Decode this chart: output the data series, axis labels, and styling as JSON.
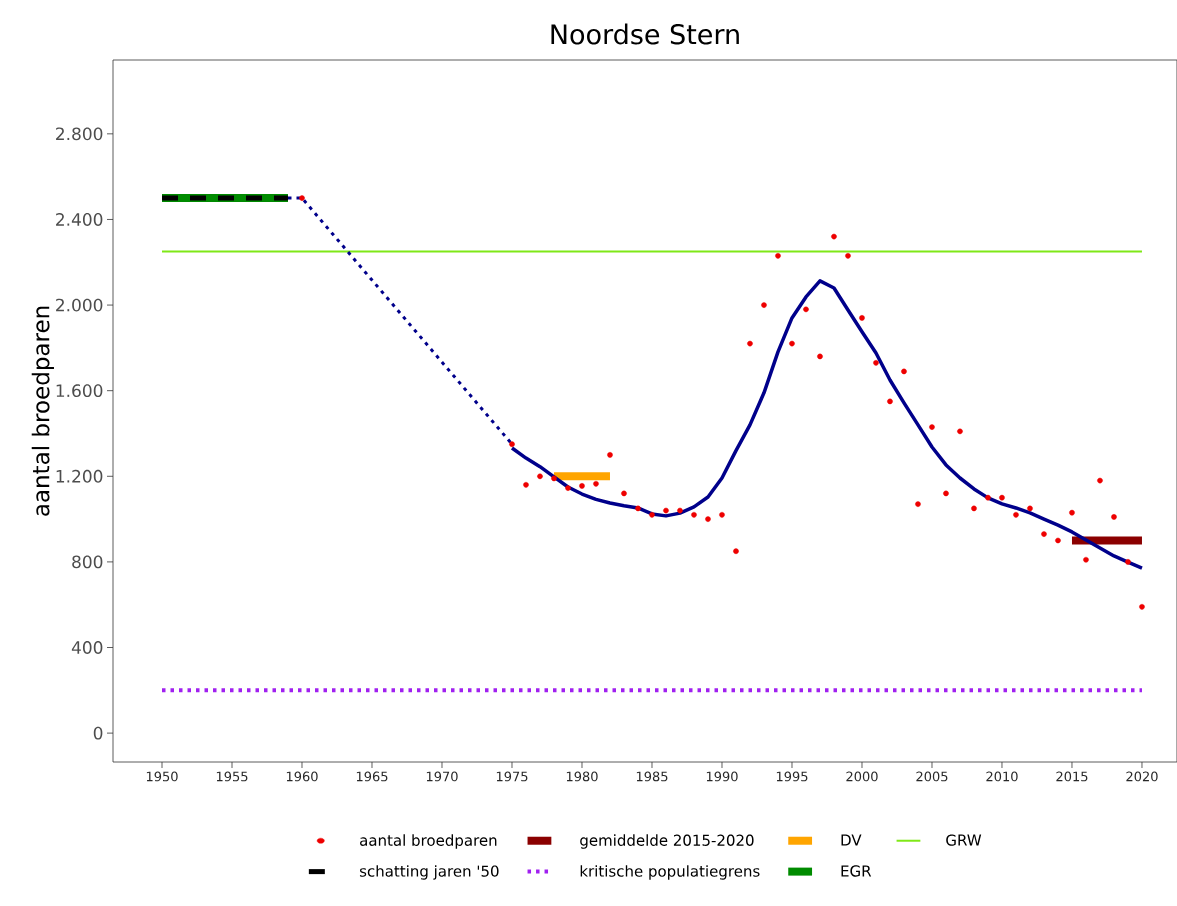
{
  "chart_data": {
    "type": "scatter",
    "title": "Noordse Stern",
    "ylabel": "aantal broedparen",
    "xlim": [
      1946.5,
      2022.5
    ],
    "ylim": [
      -135,
      3145
    ],
    "xticks": [
      1950,
      1955,
      1960,
      1965,
      1970,
      1975,
      1980,
      1985,
      1990,
      1995,
      2000,
      2005,
      2010,
      2015,
      2020
    ],
    "yticks": [
      0,
      400,
      800,
      {
        "value": 1200,
        "label": "1.200"
      },
      {
        "value": 1600,
        "label": "1.600"
      },
      {
        "value": 2000,
        "label": "2.000"
      },
      {
        "value": 2400,
        "label": "2.400"
      },
      {
        "value": 2800,
        "label": "2.800"
      }
    ],
    "grid": false,
    "legend": "bottom",
    "series": [
      {
        "type": "line",
        "color": "#00008b",
        "line_style": "solid",
        "marker": "none",
        "x": [
          1975,
          1976,
          1977,
          1978,
          1979,
          1980,
          1981,
          1982,
          1983,
          1984,
          1985,
          1986,
          1987,
          1988,
          1989,
          1990,
          1991,
          1992,
          1993,
          1994,
          1995,
          1996,
          1997,
          1998,
          1999,
          2000,
          2001,
          2002,
          2003,
          2004,
          2005,
          2006,
          2007,
          2008,
          2009,
          2010,
          2011,
          2012,
          2013,
          2014,
          2015,
          2016,
          2017,
          2018,
          2019,
          2020
        ],
        "values": [
          1332,
          1285,
          1245,
          1197,
          1150,
          1117,
          1092,
          1075,
          1062,
          1052,
          1024,
          1015,
          1028,
          1057,
          1103,
          1192,
          1320,
          1440,
          1590,
          1781,
          1940,
          2038,
          2113,
          2080,
          1977,
          1875,
          1776,
          1650,
          1543,
          1440,
          1337,
          1253,
          1192,
          1141,
          1099,
          1071,
          1052,
          1029,
          1000,
          972,
          940,
          902,
          865,
          828,
          799,
          771
        ]
      },
      {
        "type": "line",
        "color": "#00008b",
        "line_style": "dotted",
        "marker": "none",
        "x": [
          1959,
          1960,
          1975
        ],
        "values": [
          2500,
          2500,
          1350
        ]
      },
      {
        "name": "aantal broedparen",
        "color": "#ee0000",
        "marker": "circle",
        "x": [
          1960,
          1975,
          1976,
          1977,
          1978,
          1979,
          1980,
          1981,
          1982,
          1983,
          1984,
          1985,
          1986,
          1987,
          1988,
          1989,
          1990,
          1991,
          1992,
          1993,
          1994,
          1995,
          1996,
          1997,
          1998,
          1999,
          2000,
          2001,
          2002,
          2003,
          2004,
          2005,
          2006,
          2007,
          2008,
          2009,
          2010,
          2011,
          2012,
          2013,
          2014,
          2015,
          2016,
          2017,
          2018,
          2019,
          2020
        ],
        "values": [
          2500,
          1350,
          1160,
          1200,
          1190,
          1145,
          1155,
          1165,
          1300,
          1120,
          1050,
          1020,
          1040,
          1040,
          1020,
          1000,
          1020,
          850,
          1820,
          2000,
          2230,
          1820,
          1980,
          1760,
          2320,
          2230,
          1940,
          1730,
          1550,
          1690,
          1070,
          1430,
          1120,
          1410,
          1050,
          1100,
          1100,
          1020,
          1050,
          930,
          900,
          1030,
          810,
          1180,
          1010,
          800,
          590
        ]
      },
      {
        "type": "line",
        "name": "gemiddelde 2015-2020",
        "color": "#8b0000",
        "line_style": "solid",
        "marker": "none",
        "x": [
          2015,
          2020
        ],
        "values": [
          900,
          900
        ]
      },
      {
        "type": "line",
        "name": "DV",
        "color": "#ffa500",
        "line_style": "solid",
        "marker": "none",
        "x": [
          1978,
          1982
        ],
        "values": [
          1200,
          1200
        ]
      },
      {
        "type": "line",
        "name": "GRW",
        "color": "#7fe817",
        "line_style": "solid",
        "marker": "none",
        "x": [
          1950,
          2020
        ],
        "values": [
          2250,
          2250
        ]
      },
      {
        "type": "line",
        "name": "schatting jaren '50",
        "color": "#000000",
        "line_style": "dashed",
        "marker": "none",
        "x": [
          1950,
          1959
        ],
        "values": [
          2500,
          2500
        ]
      },
      {
        "type": "line",
        "name": "kritische populatiegrens",
        "color": "#a020f0",
        "line_style": "dotted",
        "marker": "none",
        "x": [
          1950,
          2020
        ],
        "values": [
          200,
          200
        ]
      },
      {
        "type": "line",
        "name": "EGR",
        "color": "#008b00",
        "line_style": "solid",
        "marker": "none",
        "x": [
          1950,
          1959
        ],
        "values": [
          2500,
          2500
        ]
      }
    ]
  }
}
